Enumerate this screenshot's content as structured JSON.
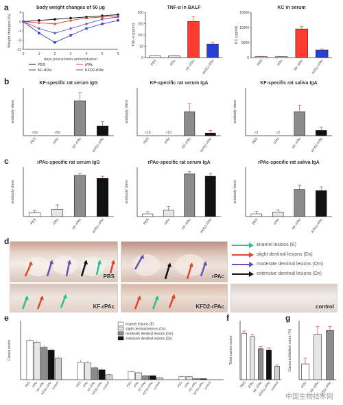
{
  "panel_letters": [
    "a",
    "b",
    "c",
    "d",
    "e",
    "f",
    "g"
  ],
  "colors": {
    "pbs": "#ffffff",
    "rpac": "#e6e6e6",
    "kf_rpac": "#8c8c8c",
    "kfd2_rpac": "#111111",
    "tnf_kf": "#ff3b30",
    "tnf_kfd2": "#2a3fd6",
    "enamel": "#2bbf8a",
    "slight": "#e0442a",
    "moderate": "#6a4fb0",
    "extensive": "#111111"
  },
  "photos": [
    {
      "label": "PBS"
    },
    {
      "label": "rPAc"
    },
    {
      "label": "KF-rPAc"
    },
    {
      "label": "KFD2-rPAc"
    },
    {
      "label": "control"
    }
  ],
  "lesion_legend": [
    {
      "label": "enamel lesions (E)",
      "color": "#2bbf8a"
    },
    {
      "label": "slight dentinal lesions (Ds)",
      "color": "#e0442a"
    },
    {
      "label": "moderate dentinal lesions (Dm)",
      "color": "#6a4fb0"
    },
    {
      "label": "extensive dentinal lesions (Dx)",
      "color": "#111111"
    }
  ],
  "watermark": "中国生物技术网",
  "chart_data": [
    {
      "id": "a1",
      "type": "line",
      "title": "body weight changes of 50 µg",
      "xlabel": "days post-protein administration",
      "ylabel": "Weight changes (%)",
      "x": [
        0,
        1,
        2,
        3,
        4,
        5,
        6
      ],
      "xticks": [
        "0",
        "1",
        "2",
        "3",
        "4",
        "5",
        "6"
      ],
      "yticks": [
        "4",
        "0",
        "-4",
        "-8",
        "-12"
      ],
      "ylim": [
        -12,
        4
      ],
      "series": [
        {
          "name": "PBS",
          "values": [
            0,
            0.5,
            1,
            1.5,
            2,
            2.5,
            3
          ]
        },
        {
          "name": "rPAc",
          "values": [
            0,
            -0.5,
            -1,
            0.5,
            1.5,
            2,
            2.5
          ]
        },
        {
          "name": "KF-rPAc",
          "values": [
            0,
            -5,
            -9,
            -6,
            -3,
            -1,
            0.5
          ]
        },
        {
          "name": "KFD2-rPAc",
          "values": [
            0,
            -3,
            -5,
            -3,
            -1,
            1,
            2
          ]
        }
      ]
    },
    {
      "id": "a2",
      "type": "bar",
      "title": "TNF-α in BALF",
      "ylabel": "TNF-α (pg/ml)",
      "categories": [
        "PBS",
        "rPAc",
        "KF-rPAc",
        "KFD2-rPAc"
      ],
      "values": [
        8,
        8,
        160,
        60
      ],
      "errors": [
        1,
        1,
        20,
        8
      ],
      "yticks": [
        "0",
        "50",
        "100",
        "150",
        "200"
      ],
      "ylim": [
        0,
        200
      ]
    },
    {
      "id": "a3",
      "type": "bar",
      "title": "KC in serum",
      "ylabel": "KC (pg/ml)",
      "categories": [
        "PBS",
        "rPAc",
        "KF-rPAc",
        "KFD2-rPAc"
      ],
      "values": [
        300,
        300,
        9500,
        2500
      ],
      "errors": [
        50,
        50,
        800,
        300
      ],
      "yticks": [
        "0",
        "5000",
        "10000",
        "15000"
      ],
      "ylim": [
        0,
        15000
      ]
    },
    {
      "id": "b1",
      "type": "bar",
      "title": "KF-specific rat serum IgG",
      "ylabel": "antibody titers",
      "categories": [
        "PBS",
        "rPAc",
        "KF-rPAc",
        "KFD2-rPAc"
      ],
      "values": [
        0,
        0,
        80,
        22
      ],
      "errors": [
        0,
        0,
        18,
        10
      ],
      "value_labels": [
        "<50",
        "<50",
        "",
        ""
      ],
      "ylim": [
        0,
        110
      ]
    },
    {
      "id": "b2",
      "type": "bar",
      "title": "KF-specific rat serum IgA",
      "ylabel": "antibody titers",
      "categories": [
        "PBS",
        "rPAc",
        "KF-rPAc",
        "KFD2-rPAc"
      ],
      "values": [
        0,
        0,
        55,
        6
      ],
      "errors": [
        0,
        0,
        18,
        6
      ],
      "value_labels": [
        "<10",
        "<10",
        "",
        ""
      ],
      "ylim": [
        0,
        110
      ]
    },
    {
      "id": "b3",
      "type": "bar",
      "title": "KF-specific rat saliva IgA",
      "ylabel": "antibody titers",
      "categories": [
        "PBS",
        "rPAc",
        "KF-rPAc",
        "KFD2-rPAc"
      ],
      "values": [
        0,
        0,
        55,
        12
      ],
      "errors": [
        0,
        0,
        15,
        8
      ],
      "value_labels": [
        "<2",
        "<2",
        "",
        ""
      ],
      "ylim": [
        0,
        110
      ]
    },
    {
      "id": "c1",
      "type": "bar",
      "title": "rPAc-specific rat serum IgG",
      "ylabel": "antibody titers",
      "categories": [
        "PBS",
        "rPAc",
        "KF-rPAc",
        "KFD2-rPAc"
      ],
      "values": [
        8,
        16,
        92,
        85
      ],
      "errors": [
        5,
        10,
        4,
        5
      ],
      "ylim": [
        0,
        110
      ]
    },
    {
      "id": "c2",
      "type": "bar",
      "title": "rPAc-specific rat serum IgA",
      "ylabel": "antibody titers",
      "categories": [
        "PBS",
        "rPAc",
        "KF-rPAc",
        "KFD2-rPAc"
      ],
      "values": [
        6,
        14,
        95,
        90
      ],
      "errors": [
        5,
        8,
        5,
        6
      ],
      "ylim": [
        0,
        110
      ]
    },
    {
      "id": "c3",
      "type": "bar",
      "title": "rPAc-specific rat saliva IgA",
      "ylabel": "antibody titers",
      "categories": [
        "PBS",
        "rPAc",
        "KF-rPAc",
        "KFD2-rPAc"
      ],
      "values": [
        6,
        10,
        60,
        58
      ],
      "errors": [
        5,
        5,
        10,
        8
      ],
      "ylim": [
        0,
        110
      ]
    },
    {
      "id": "e",
      "type": "bar",
      "ylabel": "Caries score",
      "groups": [
        "E",
        "Ds",
        "Dm",
        "Dx"
      ],
      "categories": [
        "PBS",
        "rPAc",
        "KF-rPAc",
        "KFD2-rPAc",
        "control"
      ],
      "values": [
        [
          40,
          38,
          33,
          30,
          22
        ],
        [
          18,
          17,
          12,
          10,
          5
        ],
        [
          8,
          7,
          4,
          4,
          2
        ],
        [
          3,
          3,
          1,
          1,
          0
        ]
      ],
      "errors": [
        [
          2,
          2,
          2,
          2,
          2
        ],
        [
          2,
          2,
          2,
          2,
          1
        ],
        [
          1,
          1,
          1,
          1,
          1
        ],
        [
          1,
          1,
          0.5,
          0.5,
          0
        ]
      ],
      "legend": [
        "enamel lesions (E)",
        "slight dentinal lesions (Ds)",
        "moderate dentinal lesions (Dm)",
        "extensive dentinal lesions (Dx)"
      ],
      "ylim": [
        0,
        60
      ]
    },
    {
      "id": "f",
      "type": "bar",
      "ylabel": "Total caries score",
      "categories": [
        "PBS",
        "rPAc",
        "KF-rPAc",
        "KFD2-rPAc",
        "control"
      ],
      "values": [
        63,
        58,
        42,
        40,
        18
      ],
      "errors": [
        3,
        3,
        3,
        3,
        2
      ],
      "ylim": [
        0,
        80
      ]
    },
    {
      "id": "g",
      "type": "bar",
      "ylabel": "Caries inhibition rates (%)",
      "categories": [
        "rPAc",
        "KF-rPAc",
        "KFD2-rPAc"
      ],
      "values": [
        16,
        46,
        50
      ],
      "errors": [
        6,
        8,
        4
      ],
      "ylim": [
        0,
        60
      ]
    }
  ]
}
